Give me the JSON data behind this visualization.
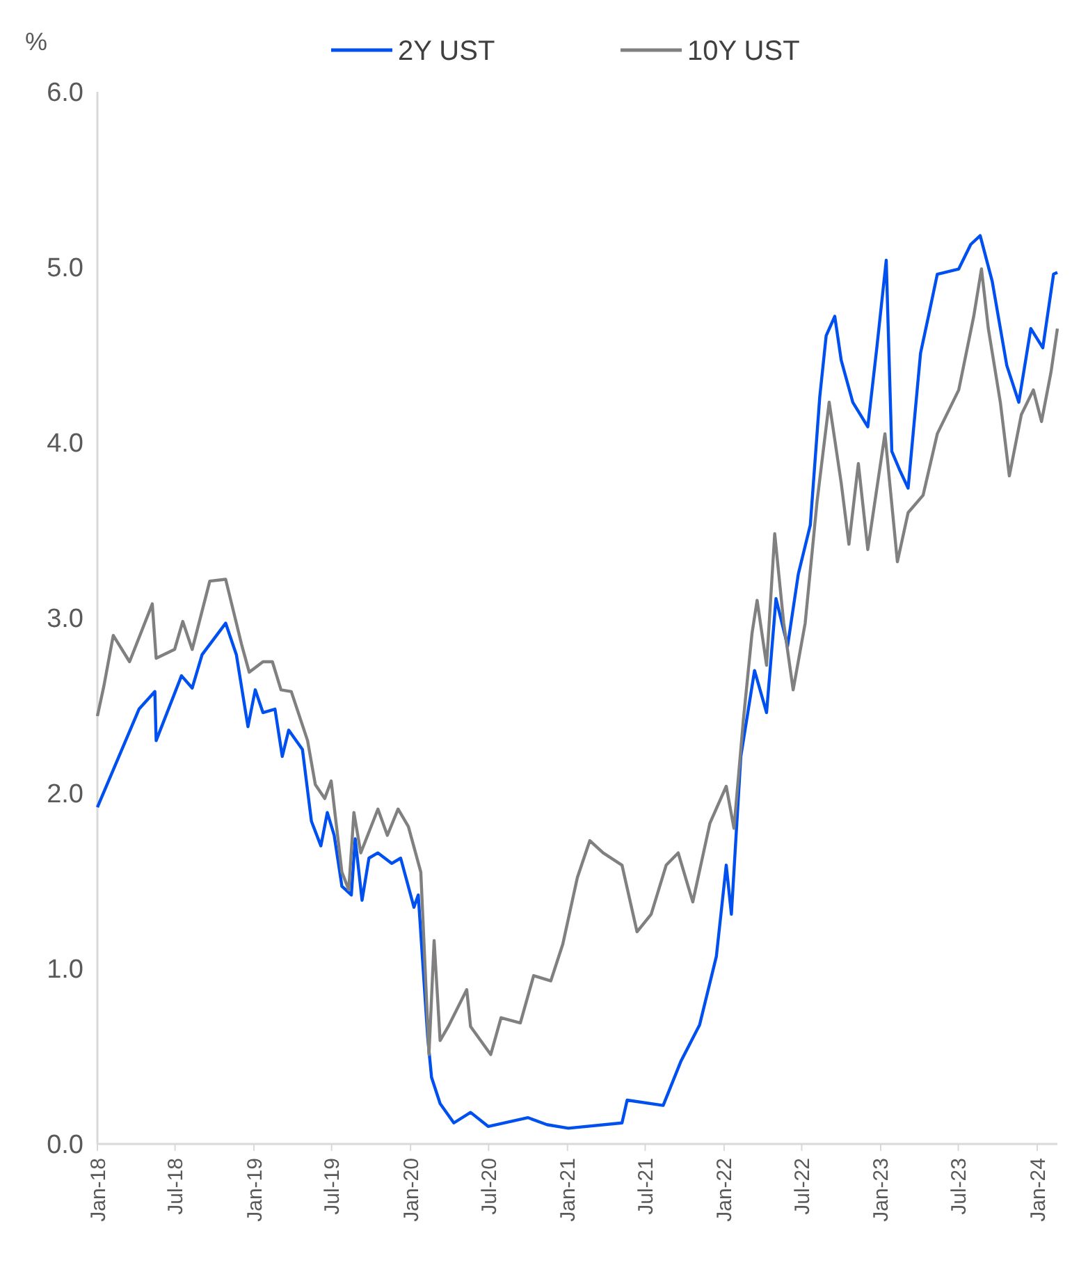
{
  "chart_data": {
    "type": "line",
    "ylabel": "%",
    "legend": "top",
    "grid": false,
    "line_style": "solid",
    "marker": "none",
    "xlim": [
      "2018-01-01",
      "2024-02-17"
    ],
    "ylim": [
      0,
      6
    ],
    "yticks": [
      {
        "value": 0,
        "label": "0.0"
      },
      {
        "value": 1,
        "label": "1.0"
      },
      {
        "value": 2,
        "label": "2.0"
      },
      {
        "value": 3,
        "label": "3.0"
      },
      {
        "value": 4,
        "label": "4.0"
      },
      {
        "value": 5,
        "label": "5.0"
      },
      {
        "value": 6,
        "label": "6.0"
      }
    ],
    "xticks": [
      {
        "value": "2018-01-01",
        "label": "Jan-18"
      },
      {
        "value": "2018-07-01",
        "label": "Jul-18"
      },
      {
        "value": "2019-01-01",
        "label": "Jan-19"
      },
      {
        "value": "2019-07-01",
        "label": "Jul-19"
      },
      {
        "value": "2020-01-01",
        "label": "Jan-20"
      },
      {
        "value": "2020-07-01",
        "label": "Jul-20"
      },
      {
        "value": "2021-01-01",
        "label": "Jan-21"
      },
      {
        "value": "2021-07-01",
        "label": "Jul-21"
      },
      {
        "value": "2022-01-01",
        "label": "Jan-22"
      },
      {
        "value": "2022-07-01",
        "label": "Jul-22"
      },
      {
        "value": "2023-01-01",
        "label": "Jan-23"
      },
      {
        "value": "2023-07-01",
        "label": "Jul-23"
      },
      {
        "value": "2024-01-01",
        "label": "Jan-24"
      }
    ],
    "series": [
      {
        "name": "2Y UST",
        "color": "#0050f0",
        "x": [
          "2018-01-01",
          "2018-04-08",
          "2018-05-15",
          "2018-05-18",
          "2018-07-16",
          "2018-08-10",
          "2018-09-02",
          "2018-10-27",
          "2018-11-21",
          "2018-12-18",
          "2019-01-04",
          "2019-01-22",
          "2019-02-19",
          "2019-03-08",
          "2019-03-23",
          "2019-04-24",
          "2019-05-15",
          "2019-06-06",
          "2019-06-21",
          "2019-07-07",
          "2019-07-25",
          "2019-08-16",
          "2019-08-25",
          "2019-09-10",
          "2019-09-26",
          "2019-10-17",
          "2019-11-18",
          "2019-12-09",
          "2020-01-09",
          "2020-01-19",
          "2020-02-10",
          "2020-02-19",
          "2020-03-10",
          "2020-04-11",
          "2020-05-20",
          "2020-06-30",
          "2020-10-01",
          "2020-11-14",
          "2021-01-03",
          "2021-05-08",
          "2021-05-20",
          "2021-08-12",
          "2021-09-22",
          "2021-11-05",
          "2021-12-14",
          "2022-01-06",
          "2022-01-18",
          "2022-02-09",
          "2022-03-13",
          "2022-04-10",
          "2022-05-02",
          "2022-05-29",
          "2022-06-23",
          "2022-07-21",
          "2022-08-12",
          "2022-08-27",
          "2022-09-16",
          "2022-10-01",
          "2022-10-28",
          "2022-12-02",
          "2022-12-23",
          "2023-01-14",
          "2023-01-27",
          "2023-02-15",
          "2023-03-06",
          "2023-04-04",
          "2023-04-25",
          "2023-05-13",
          "2023-07-02",
          "2023-07-30",
          "2023-08-21",
          "2023-09-18",
          "2023-10-22",
          "2023-11-19",
          "2023-12-17",
          "2024-01-14",
          "2024-02-08",
          "2024-02-17"
        ],
        "values": [
          1.92,
          2.48,
          2.58,
          2.3,
          2.67,
          2.6,
          2.79,
          2.97,
          2.79,
          2.38,
          2.59,
          2.46,
          2.48,
          2.21,
          2.36,
          2.25,
          1.84,
          1.7,
          1.89,
          1.76,
          1.47,
          1.42,
          1.74,
          1.39,
          1.63,
          1.66,
          1.6,
          1.63,
          1.35,
          1.42,
          0.61,
          0.38,
          0.23,
          0.12,
          0.18,
          0.1,
          0.15,
          0.11,
          0.09,
          0.12,
          0.25,
          0.22,
          0.47,
          0.68,
          1.07,
          1.59,
          1.31,
          2.21,
          2.7,
          2.46,
          3.11,
          2.84,
          3.25,
          3.53,
          4.26,
          4.61,
          4.72,
          4.47,
          4.23,
          4.09,
          4.54,
          5.04,
          3.95,
          3.84,
          3.74,
          4.51,
          4.75,
          4.96,
          4.99,
          5.13,
          5.18,
          4.92,
          4.44,
          4.23,
          4.65,
          4.54,
          4.96,
          4.97
        ]
      },
      {
        "name": "10Y UST",
        "color": "#808080",
        "x": [
          "2018-01-01",
          "2018-01-16",
          "2018-02-07",
          "2018-03-17",
          "2018-05-09",
          "2018-05-18",
          "2018-06-30",
          "2018-07-19",
          "2018-08-10",
          "2018-09-20",
          "2018-10-27",
          "2018-12-03",
          "2018-12-21",
          "2019-01-22",
          "2019-02-13",
          "2019-03-05",
          "2019-03-29",
          "2019-05-06",
          "2019-05-24",
          "2019-06-15",
          "2019-06-30",
          "2019-07-25",
          "2019-08-10",
          "2019-08-22",
          "2019-09-07",
          "2019-10-17",
          "2019-11-08",
          "2019-12-03",
          "2019-12-27",
          "2020-01-25",
          "2020-02-13",
          "2020-02-25",
          "2020-03-10",
          "2020-03-29",
          "2020-05-11",
          "2020-05-20",
          "2020-07-06",
          "2020-07-30",
          "2020-09-13",
          "2020-10-14",
          "2020-11-23",
          "2020-12-21",
          "2021-01-24",
          "2021-02-22",
          "2021-03-25",
          "2021-05-08",
          "2021-06-12",
          "2021-07-15",
          "2021-08-19",
          "2021-09-16",
          "2021-10-20",
          "2021-11-29",
          "2022-01-06",
          "2022-01-24",
          "2022-02-15",
          "2022-03-07",
          "2022-03-19",
          "2022-04-10",
          "2022-04-29",
          "2022-05-20",
          "2022-06-11",
          "2022-07-09",
          "2022-08-06",
          "2022-09-03",
          "2022-10-01",
          "2022-10-19",
          "2022-11-10",
          "2022-12-02",
          "2023-01-11",
          "2023-02-09",
          "2023-03-06",
          "2023-04-10",
          "2023-05-13",
          "2023-07-02",
          "2023-08-06",
          "2023-08-24",
          "2023-09-09",
          "2023-10-07",
          "2023-10-28",
          "2023-11-25",
          "2023-12-23",
          "2024-01-11",
          "2024-02-02",
          "2024-02-17"
        ],
        "values": [
          2.44,
          2.61,
          2.9,
          2.75,
          3.08,
          2.77,
          2.82,
          2.98,
          2.82,
          3.21,
          3.22,
          2.85,
          2.69,
          2.75,
          2.75,
          2.59,
          2.58,
          2.3,
          2.05,
          1.97,
          2.07,
          1.55,
          1.45,
          1.89,
          1.66,
          1.91,
          1.76,
          1.91,
          1.81,
          1.55,
          0.51,
          1.16,
          0.59,
          0.67,
          0.88,
          0.67,
          0.51,
          0.72,
          0.69,
          0.96,
          0.93,
          1.14,
          1.52,
          1.73,
          1.66,
          1.59,
          1.21,
          1.31,
          1.59,
          1.66,
          1.38,
          1.83,
          2.04,
          1.8,
          2.42,
          2.91,
          3.1,
          2.73,
          3.48,
          2.97,
          2.59,
          2.97,
          3.67,
          4.23,
          3.77,
          3.42,
          3.88,
          3.39,
          4.05,
          3.32,
          3.6,
          3.7,
          4.05,
          4.3,
          4.72,
          4.99,
          4.65,
          4.23,
          3.81,
          4.16,
          4.3,
          4.12,
          4.4,
          4.65
        ]
      }
    ]
  }
}
